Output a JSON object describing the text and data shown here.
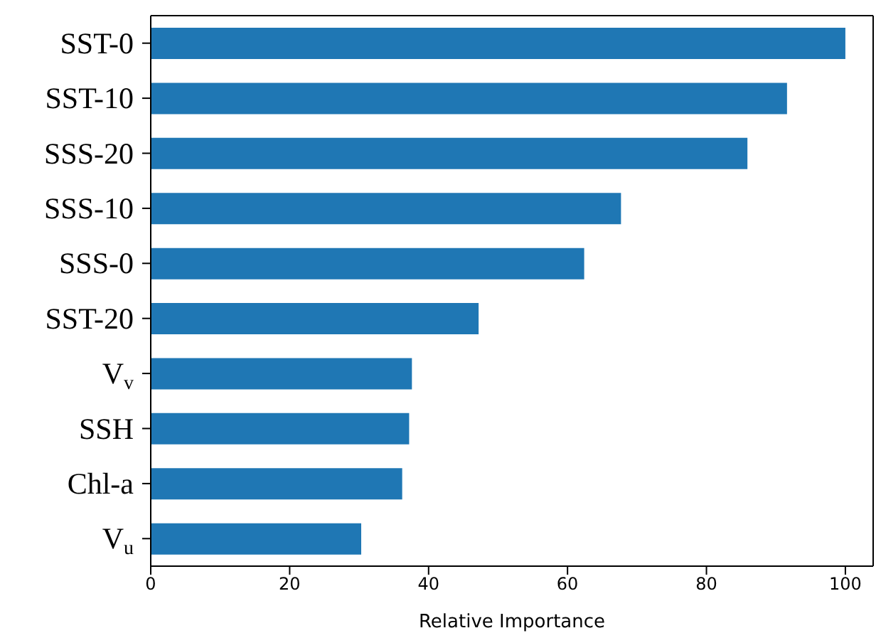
{
  "chart_data": {
    "type": "bar",
    "orientation": "horizontal",
    "xlabel": "Relative Importance",
    "categories": [
      "SST-0",
      "SST-10",
      "SSS-20",
      "SSS-10",
      "SSS-0",
      "SST-20",
      "V$_{v}$",
      "SSH",
      "Chl-a",
      "V$_{u}$"
    ],
    "values": [
      100,
      91.6,
      85.9,
      67.7,
      62.4,
      47.2,
      37.6,
      37.2,
      36.2,
      30.3
    ],
    "color": "#1f77b4",
    "xlim": [
      0,
      104
    ],
    "xticks": [
      0,
      20,
      40,
      60,
      80,
      100
    ],
    "grid": false
  }
}
